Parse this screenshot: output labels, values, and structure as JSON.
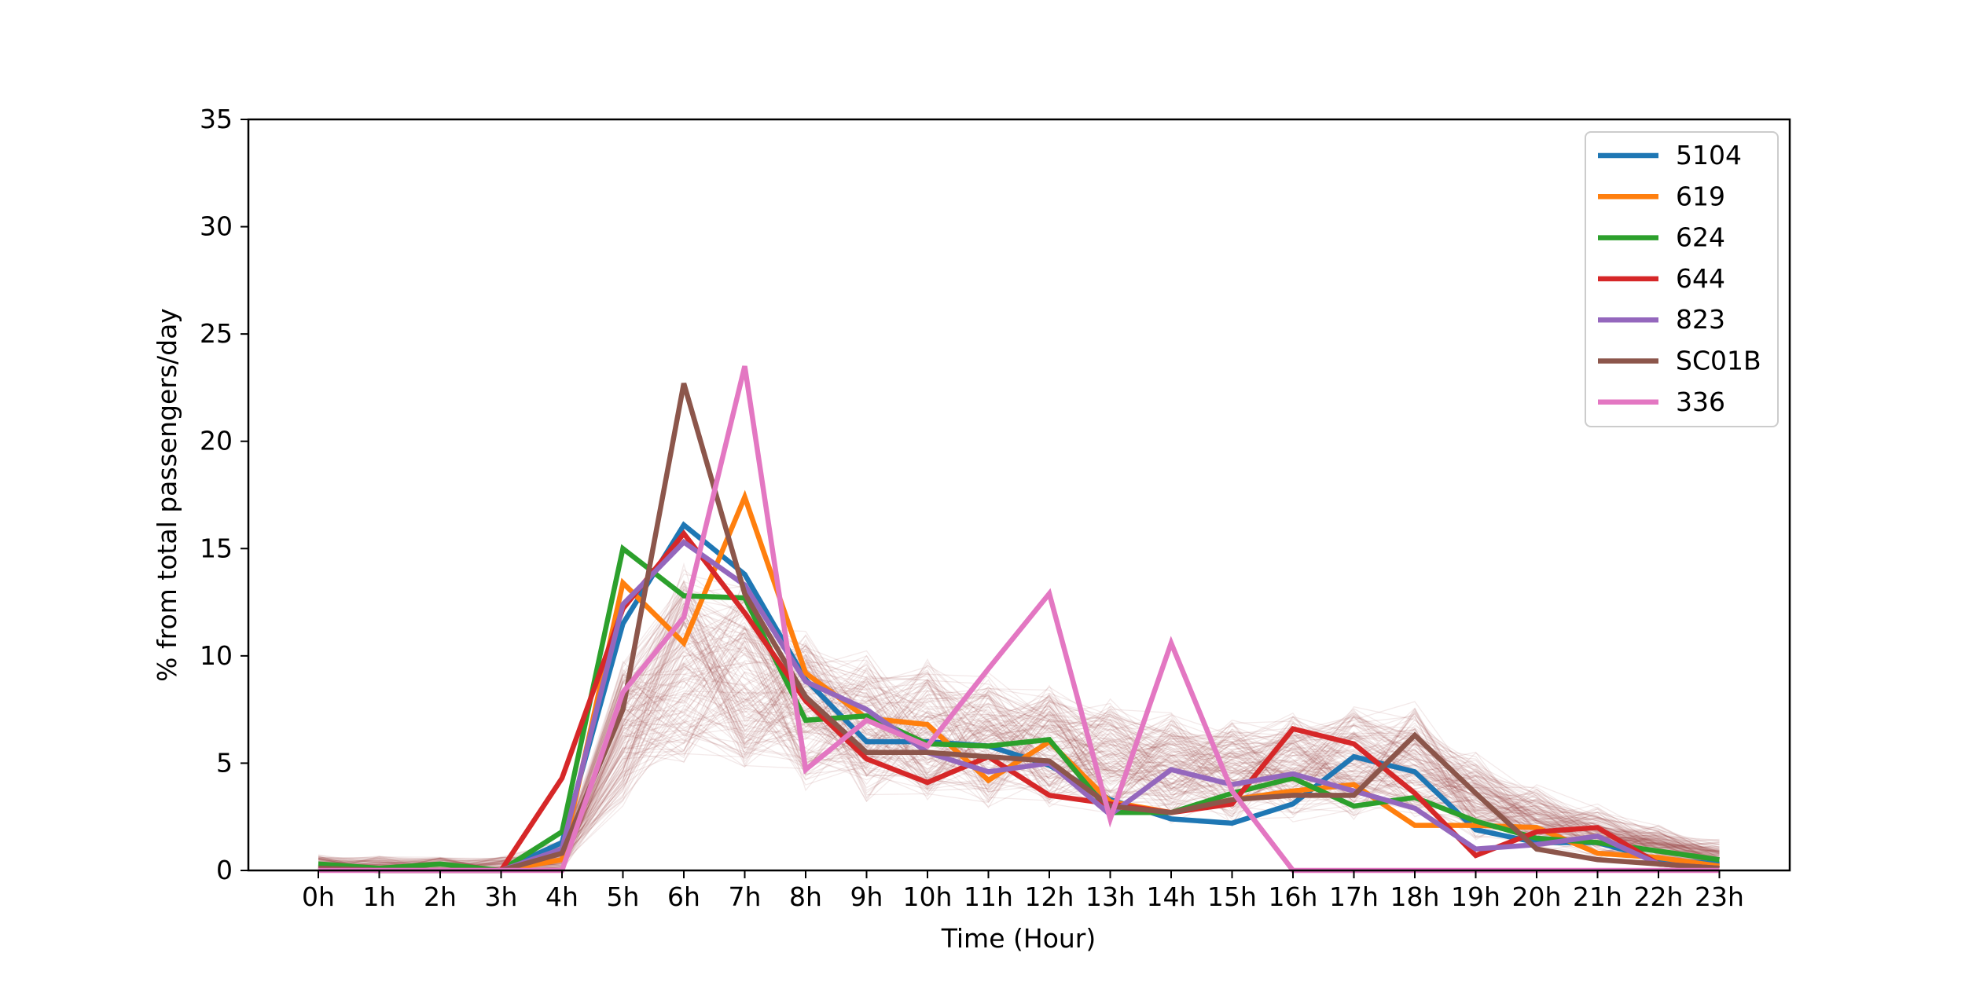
{
  "chart_data": {
    "type": "line",
    "title": "",
    "xlabel": "Time (Hour)",
    "ylabel": "% from total passengers/day",
    "ylim": [
      0,
      35
    ],
    "yticks": [
      "0",
      "5",
      "10",
      "15",
      "20",
      "25",
      "30",
      "35"
    ],
    "categories": [
      "0h",
      "1h",
      "2h",
      "3h",
      "4h",
      "5h",
      "6h",
      "7h",
      "8h",
      "9h",
      "10h",
      "11h",
      "12h",
      "13h",
      "14h",
      "15h",
      "16h",
      "17h",
      "18h",
      "19h",
      "20h",
      "21h",
      "22h",
      "23h"
    ],
    "grid": false,
    "legend_position": "top-right",
    "series": [
      {
        "name": "5104",
        "color": "#1f77b4",
        "values": [
          0.2,
          0,
          0,
          0,
          1.3,
          11.5,
          16.1,
          13.8,
          8.9,
          6.0,
          6.0,
          5.8,
          4.9,
          3.3,
          2.4,
          2.2,
          3.1,
          5.3,
          4.6,
          1.9,
          1.3,
          1.3,
          0.5,
          0.3
        ]
      },
      {
        "name": "619",
        "color": "#ff7f0e",
        "values": [
          0.2,
          0,
          0,
          0,
          0.5,
          13.4,
          10.6,
          17.4,
          9.2,
          7.1,
          6.8,
          4.2,
          6.0,
          3.2,
          2.7,
          3.3,
          3.7,
          4.0,
          2.1,
          2.1,
          2.0,
          0.8,
          0.6,
          0.2
        ]
      },
      {
        "name": "624",
        "color": "#2ca02c",
        "values": [
          0.3,
          0.1,
          0.3,
          0,
          1.8,
          15.0,
          12.8,
          12.7,
          7.0,
          7.2,
          5.9,
          5.8,
          6.1,
          2.7,
          2.7,
          3.6,
          4.3,
          3.0,
          3.4,
          2.3,
          1.5,
          1.3,
          0.9,
          0.5
        ]
      },
      {
        "name": "644",
        "color": "#d62728",
        "values": [
          0.1,
          0,
          0,
          0,
          4.3,
          12.2,
          15.7,
          12.0,
          7.9,
          5.2,
          4.1,
          5.3,
          3.5,
          3.1,
          2.7,
          3.1,
          6.6,
          5.9,
          3.6,
          0.7,
          1.8,
          2.0,
          0.3,
          0.1
        ]
      },
      {
        "name": "823",
        "color": "#9467bd",
        "values": [
          0.1,
          0,
          0,
          0,
          1.0,
          12.4,
          15.3,
          13.3,
          8.8,
          7.5,
          5.5,
          4.6,
          5.0,
          2.6,
          4.7,
          4.0,
          4.5,
          3.7,
          2.9,
          1.0,
          1.2,
          1.6,
          0.3,
          0.1
        ]
      },
      {
        "name": "SC01B",
        "color": "#8c564b",
        "values": [
          0.1,
          0,
          0,
          0,
          0.8,
          7.5,
          22.7,
          12.9,
          8.1,
          5.5,
          5.5,
          5.3,
          5.1,
          3.0,
          2.7,
          3.3,
          3.5,
          3.5,
          6.3,
          3.6,
          1.0,
          0.5,
          0.3,
          0.1
        ]
      },
      {
        "name": "336",
        "color": "#e377c2",
        "values": [
          0,
          0,
          0,
          0,
          0,
          8.3,
          11.8,
          23.5,
          4.7,
          7.0,
          5.8,
          9.4,
          12.9,
          2.4,
          10.6,
          3.7,
          0,
          0,
          0,
          0,
          0,
          0,
          0,
          0
        ]
      }
    ]
  }
}
